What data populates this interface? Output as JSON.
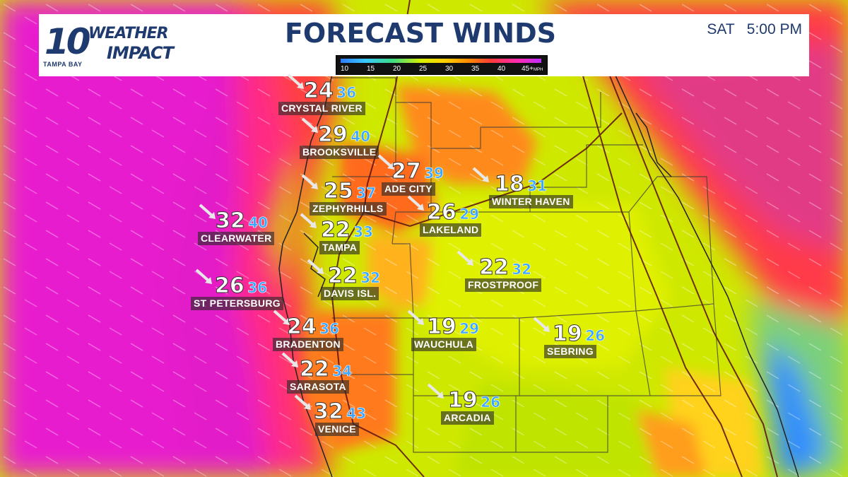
{
  "header": {
    "logo_number": "10",
    "logo_word1": "WEATHER",
    "logo_word2": "IMPACT",
    "logo_station": "TAMPA BAY",
    "title": "FORECAST WINDS",
    "timestamp": "SAT   5:00 PM"
  },
  "legend": {
    "ticks": [
      "10",
      "15",
      "20",
      "25",
      "30",
      "35",
      "40",
      "45+"
    ],
    "unit": "MPH",
    "colors": [
      "#2d7cff",
      "#39c7ff",
      "#3ddc84",
      "#d7f000",
      "#ffd000",
      "#ff8a00",
      "#ff3a3a",
      "#ff2bb0",
      "#c02cff"
    ]
  },
  "colors": {
    "brand": "#1e3a6e",
    "gust": "#3aa6ff",
    "wind_extreme": "#e21cc8",
    "wind_high": "#ff3a3a",
    "wind_mid": "#ffb300",
    "wind_low": "#d7f000"
  },
  "cities": [
    {
      "name": "CRYSTAL RIVER",
      "sustained": "24",
      "gust": "36"
    },
    {
      "name": "BROOKSVILLE",
      "sustained": "29",
      "gust": "40"
    },
    {
      "name": "ADE CITY",
      "sustained": "27",
      "gust": "39"
    },
    {
      "name": "WINTER HAVEN",
      "sustained": "18",
      "gust": "31"
    },
    {
      "name": "ZEPHYRHILLS",
      "sustained": "25",
      "gust": "37"
    },
    {
      "name": "LAKELAND",
      "sustained": "26",
      "gust": "29"
    },
    {
      "name": "CLEARWATER",
      "sustained": "32",
      "gust": "40"
    },
    {
      "name": "TAMPA",
      "sustained": "22",
      "gust": "33"
    },
    {
      "name": "DAVIS ISL.",
      "sustained": "22",
      "gust": "32"
    },
    {
      "name": "FROSTPROOF",
      "sustained": "22",
      "gust": "32"
    },
    {
      "name": "ST PETERSBURG",
      "sustained": "26",
      "gust": "36"
    },
    {
      "name": "BRADENTON",
      "sustained": "24",
      "gust": "36"
    },
    {
      "name": "WAUCHULA",
      "sustained": "19",
      "gust": "29"
    },
    {
      "name": "SEBRING",
      "sustained": "19",
      "gust": "26"
    },
    {
      "name": "SARASOTA",
      "sustained": "22",
      "gust": "34"
    },
    {
      "name": "ARCADIA",
      "sustained": "19",
      "gust": "26"
    },
    {
      "name": "VENICE",
      "sustained": "32",
      "gust": "43"
    }
  ]
}
